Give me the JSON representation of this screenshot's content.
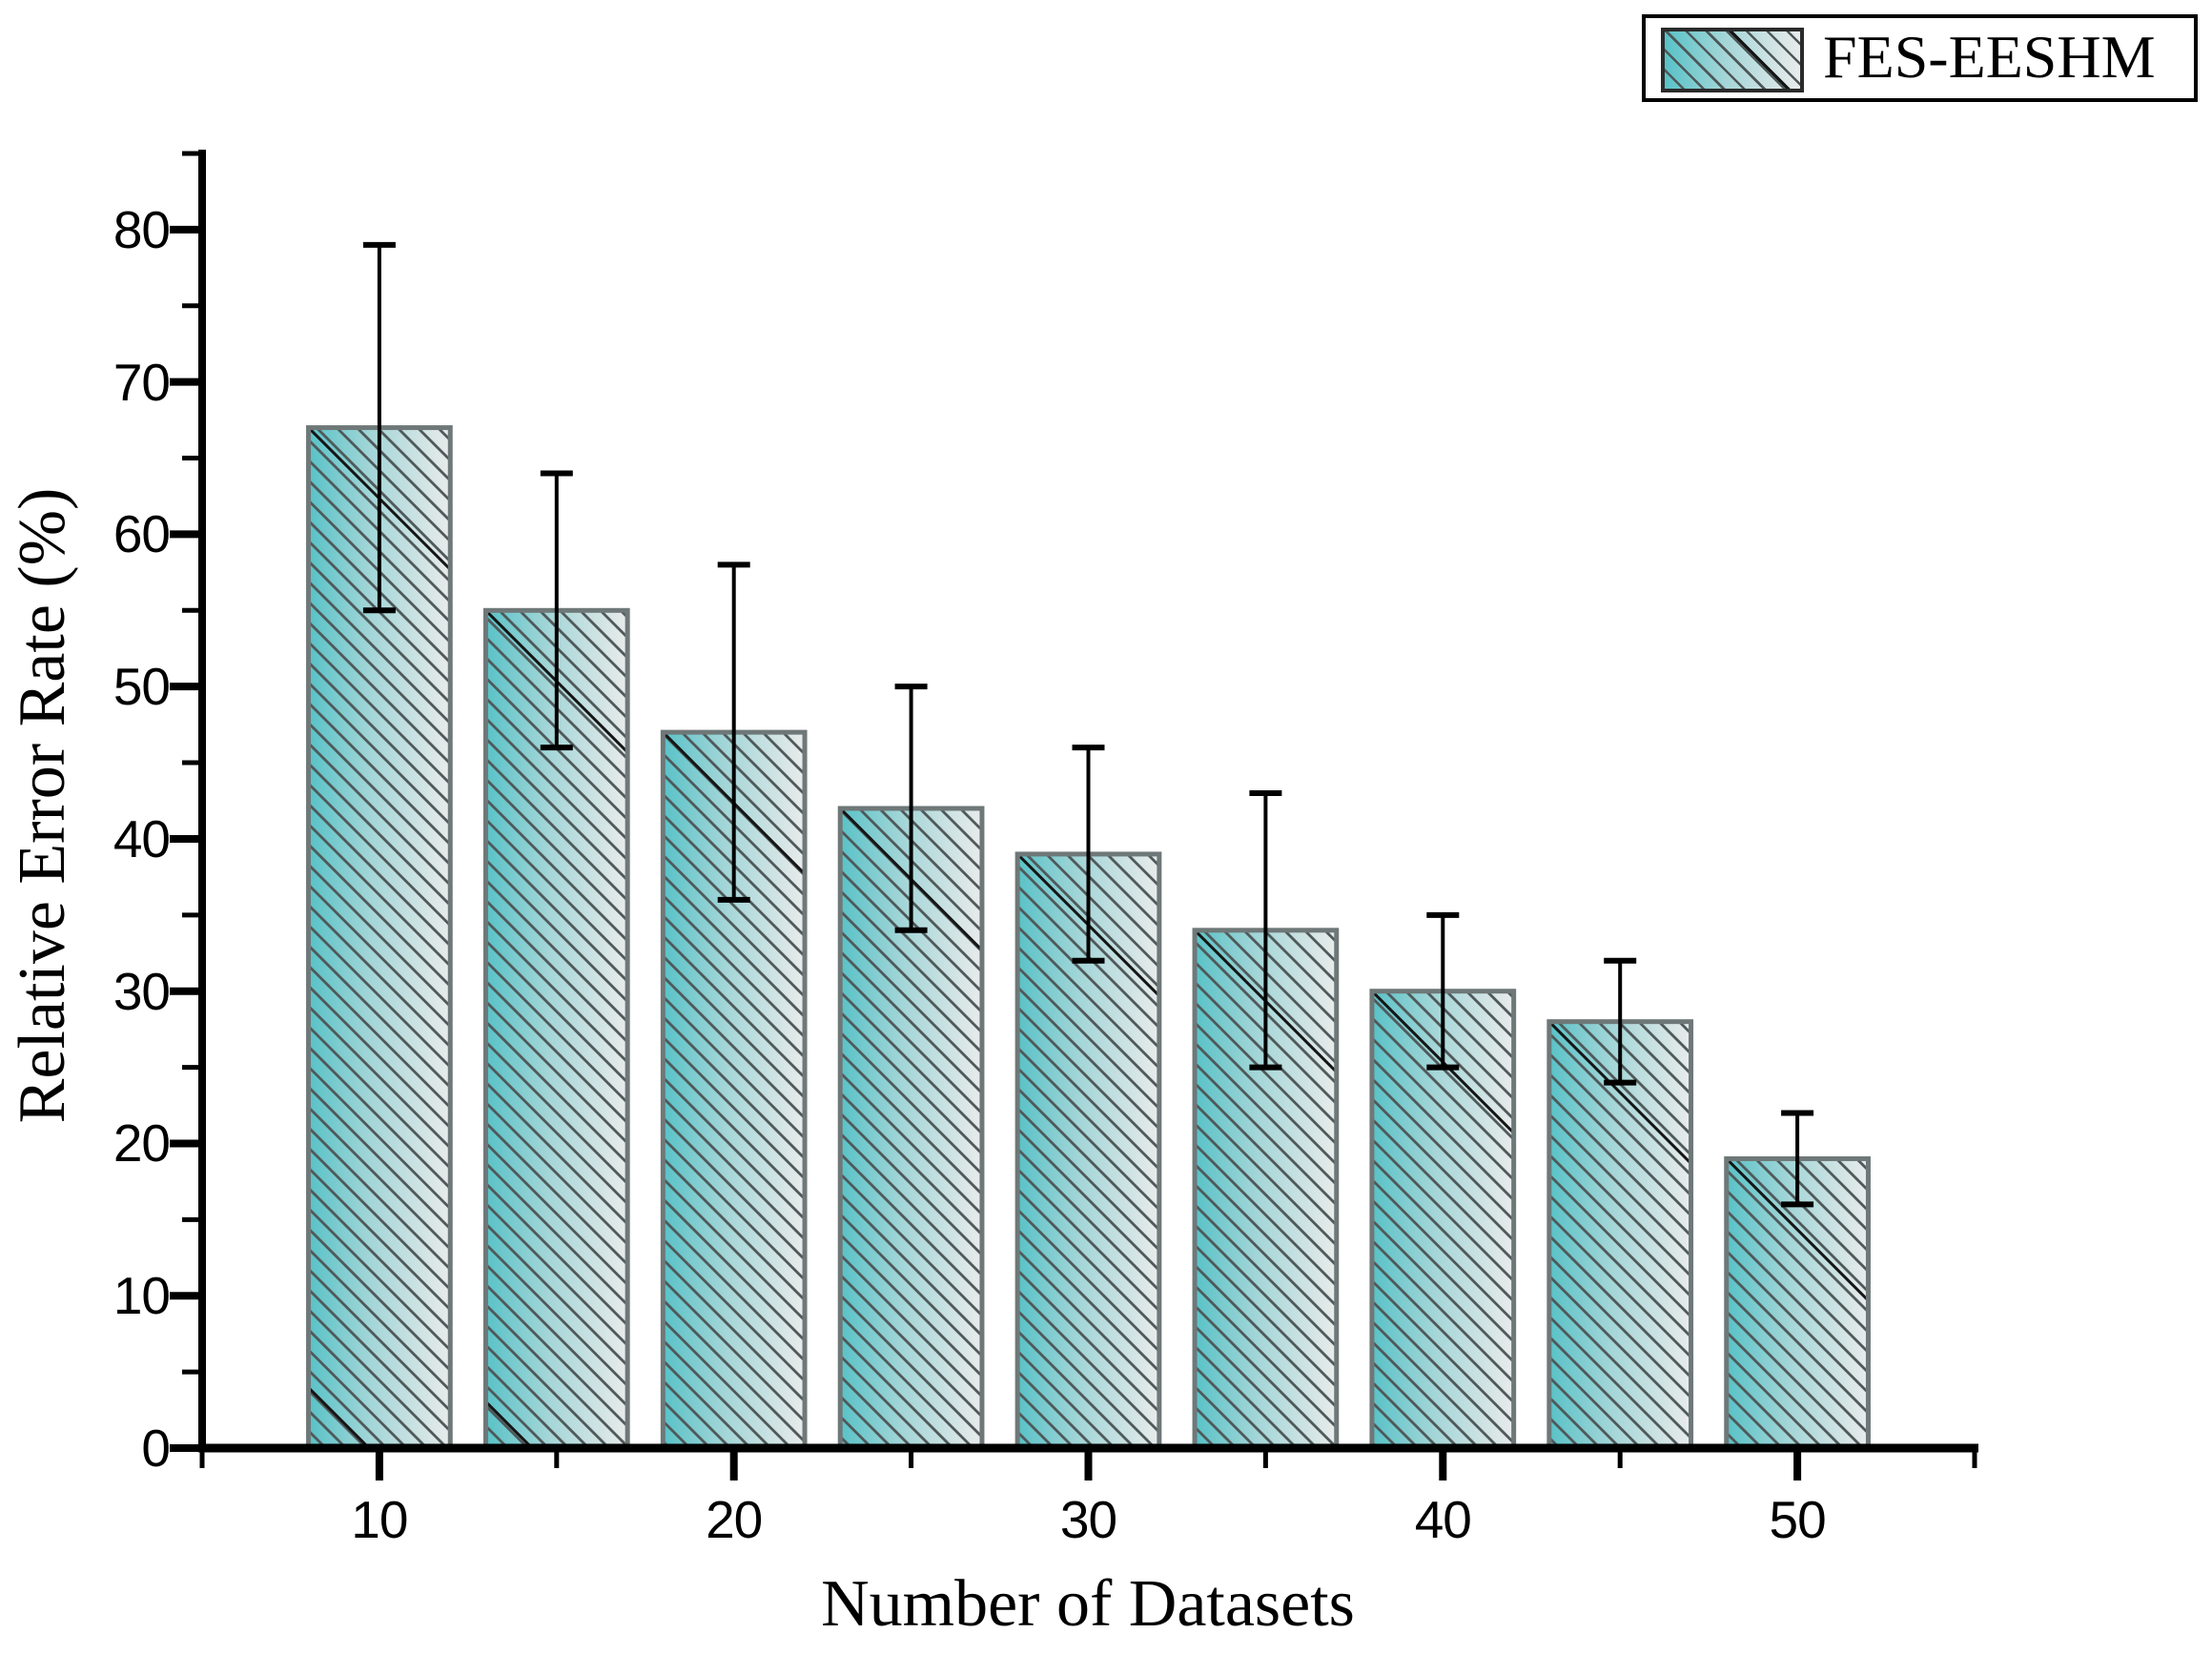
{
  "chart_data": {
    "type": "bar",
    "title": "",
    "xlabel": "Number of Datasets",
    "ylabel": "Relative Error Rate (%)",
    "legend_label": "FES-EESHM",
    "legend_position": "top-right",
    "x": [
      10,
      15,
      20,
      25,
      30,
      35,
      40,
      45,
      50
    ],
    "values": [
      67,
      55,
      47,
      42,
      39,
      34,
      30,
      28,
      19
    ],
    "error_plus": [
      12,
      9,
      11,
      8,
      7,
      9,
      5,
      4,
      3
    ],
    "error_minus": [
      12,
      9,
      11,
      8,
      7,
      9,
      5,
      4,
      3
    ],
    "bar_width_units": 4,
    "xlim": [
      5,
      55
    ],
    "ylim": [
      0,
      85
    ],
    "x_major_ticks": [
      10,
      20,
      30,
      40,
      50
    ],
    "x_minor_ticks": [
      5,
      15,
      25,
      35,
      45,
      55
    ],
    "y_major_ticks": [
      0,
      10,
      20,
      30,
      40,
      50,
      60,
      70,
      80
    ],
    "y_minor_ticks": [
      5,
      15,
      25,
      35,
      45,
      55,
      65,
      75,
      85
    ],
    "grid": false,
    "bar_style": "diagonal-hatch-gradient",
    "colors": {
      "bar_gradient_left": "#58c2c7",
      "bar_gradient_mid": "#a5d6d8",
      "bar_gradient_right": "#e9ebeb",
      "hatch_line": "#4e5758",
      "hatch_accent": "#151515",
      "bar_border": "#6f7878",
      "axis": "#000000",
      "error_bar": "#000000",
      "background": "#ffffff"
    }
  }
}
